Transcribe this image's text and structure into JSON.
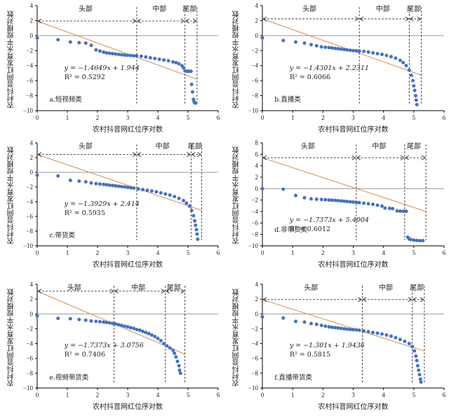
{
  "chart_data": [
    {
      "type": "scatter",
      "sublabel": "a.短视频类",
      "xlabel": "农村抖音网红位序对数",
      "ylabel": "农村抖音网红发育水平规模对数",
      "xlim": [
        0,
        6
      ],
      "ylim": [
        -10,
        4
      ],
      "xticks": [
        "0",
        "1",
        "2",
        "3",
        "4",
        "5",
        "6"
      ],
      "yticks": [
        "4",
        "2",
        "0",
        "−2",
        "−4",
        "−6",
        "−8",
        "−10"
      ],
      "segments": [
        "头部",
        "中部",
        "尾部"
      ],
      "segment_bounds": [
        3.3,
        4.9,
        5.3
      ],
      "equation": "y = −1.4649x + 1.944",
      "r2_label": "R² = 0.5292",
      "fit": {
        "slope": -1.4649,
        "intercept": 1.944
      },
      "points": [
        [
          0,
          -0.3
        ],
        [
          0.69,
          -0.55
        ],
        [
          1.1,
          -0.85
        ],
        [
          1.39,
          -0.95
        ],
        [
          1.61,
          -1.0
        ],
        [
          1.79,
          -1.3
        ],
        [
          1.95,
          -1.9
        ],
        [
          2.08,
          -2.05
        ],
        [
          2.2,
          -2.2
        ],
        [
          2.3,
          -2.3
        ],
        [
          2.4,
          -2.35
        ],
        [
          2.5,
          -2.4
        ],
        [
          2.6,
          -2.45
        ],
        [
          2.7,
          -2.5
        ],
        [
          2.8,
          -2.55
        ],
        [
          2.9,
          -2.6
        ],
        [
          3.0,
          -2.62
        ],
        [
          3.1,
          -2.65
        ],
        [
          3.2,
          -2.68
        ],
        [
          3.3,
          -2.7
        ],
        [
          3.45,
          -2.75
        ],
        [
          3.6,
          -2.85
        ],
        [
          3.75,
          -2.95
        ],
        [
          3.9,
          -3.05
        ],
        [
          4.05,
          -3.15
        ],
        [
          4.2,
          -3.25
        ],
        [
          4.35,
          -3.35
        ],
        [
          4.5,
          -3.5
        ],
        [
          4.6,
          -3.6
        ],
        [
          4.7,
          -3.75
        ],
        [
          4.8,
          -4.0
        ],
        [
          4.85,
          -4.3
        ],
        [
          4.9,
          -4.7
        ],
        [
          4.95,
          -4.75
        ],
        [
          5.0,
          -4.75
        ],
        [
          5.05,
          -4.75
        ],
        [
          5.1,
          -4.75
        ],
        [
          5.12,
          -6.5
        ],
        [
          5.15,
          -7.5
        ],
        [
          5.18,
          -8.5
        ],
        [
          5.2,
          -8.8
        ],
        [
          5.22,
          -8.95
        ],
        [
          5.25,
          -9.0
        ]
      ]
    },
    {
      "type": "scatter",
      "sublabel": "b.直播类",
      "xlabel": "农村抖音网红位序对数",
      "ylabel": "农村抖音网红发育水平规模对数",
      "xlim": [
        0,
        6
      ],
      "ylim": [
        -10,
        4
      ],
      "xticks": [
        "0",
        "1",
        "2",
        "3",
        "4",
        "5",
        "6"
      ],
      "yticks": [
        "4",
        "2",
        "0",
        "−2",
        "−4",
        "−6",
        "−8",
        "−10"
      ],
      "segments": [
        "头部",
        "中部",
        "尾部"
      ],
      "segment_bounds": [
        3.2,
        4.85,
        5.25
      ],
      "equation": "y = −1.4301x + 2.2311",
      "r2_label": "R² = 0.6066",
      "fit": {
        "slope": -1.4301,
        "intercept": 2.2311
      },
      "points": [
        [
          0,
          -0.3
        ],
        [
          0.69,
          -0.65
        ],
        [
          1.1,
          -0.85
        ],
        [
          1.39,
          -1.0
        ],
        [
          1.61,
          -1.2
        ],
        [
          1.79,
          -1.35
        ],
        [
          1.95,
          -1.5
        ],
        [
          2.08,
          -1.55
        ],
        [
          2.2,
          -1.6
        ],
        [
          2.3,
          -1.65
        ],
        [
          2.4,
          -1.7
        ],
        [
          2.5,
          -1.75
        ],
        [
          2.6,
          -1.8
        ],
        [
          2.7,
          -1.85
        ],
        [
          2.8,
          -1.9
        ],
        [
          2.9,
          -1.95
        ],
        [
          3.0,
          -2.0
        ],
        [
          3.1,
          -2.02
        ],
        [
          3.2,
          -2.05
        ],
        [
          3.35,
          -2.1
        ],
        [
          3.5,
          -2.2
        ],
        [
          3.65,
          -2.3
        ],
        [
          3.8,
          -2.4
        ],
        [
          3.95,
          -2.5
        ],
        [
          4.1,
          -2.65
        ],
        [
          4.25,
          -2.8
        ],
        [
          4.4,
          -3.0
        ],
        [
          4.55,
          -3.3
        ],
        [
          4.65,
          -3.6
        ],
        [
          4.75,
          -4.0
        ],
        [
          4.85,
          -4.6
        ],
        [
          4.92,
          -5.3
        ],
        [
          4.97,
          -6.0
        ],
        [
          5.0,
          -6.7
        ],
        [
          5.03,
          -7.3
        ],
        [
          5.06,
          -8.0
        ],
        [
          5.08,
          -8.6
        ],
        [
          5.1,
          -9.2
        ]
      ]
    },
    {
      "type": "scatter",
      "sublabel": "c.带货类",
      "xlabel": "农村抖音网红位序对数",
      "ylabel": "农村抖音网红发育水平规模对数",
      "xlim": [
        0,
        6
      ],
      "ylim": [
        -10,
        4
      ],
      "xticks": [
        "0",
        "1",
        "2",
        "3",
        "4",
        "5",
        "6"
      ],
      "yticks": [
        "4",
        "2",
        "0",
        "−2",
        "−4",
        "−6",
        "−8",
        "−10"
      ],
      "segments": [
        "头部",
        "中部",
        "尾部"
      ],
      "segment_bounds": [
        3.3,
        5.1,
        5.45
      ],
      "equation": "y = −1.3929x + 2.414",
      "r2_label": "R² = 0.5935",
      "fit": {
        "slope": -1.3929,
        "intercept": 2.414
      },
      "points": [
        [
          0,
          -0.4
        ],
        [
          0.69,
          -0.5
        ],
        [
          1.1,
          -1.1
        ],
        [
          1.39,
          -1.2
        ],
        [
          1.61,
          -1.3
        ],
        [
          1.79,
          -1.45
        ],
        [
          1.95,
          -1.55
        ],
        [
          2.08,
          -1.6
        ],
        [
          2.2,
          -1.65
        ],
        [
          2.3,
          -1.7
        ],
        [
          2.4,
          -1.75
        ],
        [
          2.5,
          -1.8
        ],
        [
          2.6,
          -1.85
        ],
        [
          2.7,
          -1.9
        ],
        [
          2.8,
          -1.95
        ],
        [
          2.9,
          -2.0
        ],
        [
          3.0,
          -2.05
        ],
        [
          3.1,
          -2.1
        ],
        [
          3.2,
          -2.15
        ],
        [
          3.35,
          -2.25
        ],
        [
          3.5,
          -2.35
        ],
        [
          3.65,
          -2.45
        ],
        [
          3.8,
          -2.55
        ],
        [
          3.95,
          -2.65
        ],
        [
          4.1,
          -2.8
        ],
        [
          4.25,
          -2.95
        ],
        [
          4.4,
          -3.1
        ],
        [
          4.55,
          -3.3
        ],
        [
          4.7,
          -3.55
        ],
        [
          4.85,
          -3.85
        ],
        [
          4.95,
          -4.2
        ],
        [
          5.05,
          -4.6
        ],
        [
          5.12,
          -5.2
        ],
        [
          5.18,
          -5.9
        ],
        [
          5.22,
          -6.6
        ],
        [
          5.25,
          -7.2
        ],
        [
          5.28,
          -7.8
        ],
        [
          5.3,
          -8.4
        ],
        [
          5.32,
          -9.1
        ]
      ]
    },
    {
      "type": "scatter",
      "sublabel": "d.非带货类",
      "xlabel": "农村抖音网红位序对数",
      "ylabel": "农村抖音网红发育水平规模对数",
      "xlim": [
        0,
        6
      ],
      "ylim": [
        -10,
        8
      ],
      "xticks": [
        "0",
        "1",
        "2",
        "3",
        "4",
        "5",
        "6"
      ],
      "yticks": [
        "8",
        "6",
        "4",
        "2",
        "0",
        "−2",
        "−4",
        "−6",
        "−8",
        "−10"
      ],
      "segments": [
        "头部",
        "中部",
        "尾部"
      ],
      "segment_bounds": [
        3.1,
        4.7,
        5.4
      ],
      "equation": "y = −1.7373x + 5.4004",
      "r2_label": "R² = 0.6012",
      "fit": {
        "slope": -1.7373,
        "intercept": 5.4004
      },
      "points": [
        [
          0,
          0
        ],
        [
          0.69,
          -0.1
        ],
        [
          1.1,
          -1.2
        ],
        [
          1.39,
          -1.6
        ],
        [
          1.61,
          -1.8
        ],
        [
          1.79,
          -1.85
        ],
        [
          1.95,
          -1.9
        ],
        [
          2.08,
          -1.95
        ],
        [
          2.2,
          -2.0
        ],
        [
          2.3,
          -2.02
        ],
        [
          2.4,
          -2.05
        ],
        [
          2.5,
          -2.1
        ],
        [
          2.6,
          -2.15
        ],
        [
          2.7,
          -2.2
        ],
        [
          2.8,
          -2.25
        ],
        [
          2.9,
          -2.3
        ],
        [
          3.0,
          -2.35
        ],
        [
          3.1,
          -2.4
        ],
        [
          3.2,
          -2.45
        ],
        [
          3.35,
          -2.55
        ],
        [
          3.5,
          -2.65
        ],
        [
          3.65,
          -2.75
        ],
        [
          3.8,
          -2.9
        ],
        [
          3.95,
          -3.05
        ],
        [
          4.05,
          -3.4
        ],
        [
          4.2,
          -3.45
        ],
        [
          4.3,
          -3.5
        ],
        [
          4.45,
          -3.9
        ],
        [
          4.55,
          -3.95
        ],
        [
          4.65,
          -3.95
        ],
        [
          4.75,
          -3.95
        ],
        [
          4.8,
          -8.5
        ],
        [
          4.85,
          -8.8
        ],
        [
          4.9,
          -8.9
        ],
        [
          5.0,
          -9.0
        ],
        [
          5.1,
          -9.05
        ],
        [
          5.2,
          -9.1
        ],
        [
          5.3,
          -9.1
        ]
      ]
    },
    {
      "type": "scatter",
      "sublabel": "e.视频带货类",
      "xlabel": "农村抖音网红位序对数",
      "ylabel": "农村抖音网红发育水平规模对数",
      "xlim": [
        0,
        6
      ],
      "ylim": [
        -10,
        4
      ],
      "xticks": [
        "0",
        "1",
        "2",
        "3",
        "4",
        "5",
        "6"
      ],
      "yticks": [
        "4",
        "2",
        "0",
        "−2",
        "−4",
        "−6",
        "−8",
        "−10"
      ],
      "segments": [
        "头部",
        "中部",
        "尾部"
      ],
      "segment_bounds": [
        2.55,
        4.25,
        4.9
      ],
      "equation": "y = −1.7373x + 3.0756",
      "r2_label": "R² = 0.7406",
      "fit": {
        "slope": -1.7373,
        "intercept": 3.0756
      },
      "points": [
        [
          0,
          -0.25
        ],
        [
          0.69,
          -0.6
        ],
        [
          1.1,
          -0.65
        ],
        [
          1.39,
          -0.75
        ],
        [
          1.61,
          -0.85
        ],
        [
          1.79,
          -0.95
        ],
        [
          1.95,
          -1.0
        ],
        [
          2.08,
          -1.05
        ],
        [
          2.2,
          -1.1
        ],
        [
          2.3,
          -1.15
        ],
        [
          2.4,
          -1.2
        ],
        [
          2.5,
          -1.3
        ],
        [
          2.6,
          -1.35
        ],
        [
          2.7,
          -1.45
        ],
        [
          2.8,
          -1.55
        ],
        [
          2.9,
          -1.65
        ],
        [
          3.0,
          -1.75
        ],
        [
          3.1,
          -1.85
        ],
        [
          3.2,
          -1.95
        ],
        [
          3.3,
          -2.1
        ],
        [
          3.4,
          -2.2
        ],
        [
          3.5,
          -2.35
        ],
        [
          3.6,
          -2.5
        ],
        [
          3.7,
          -2.65
        ],
        [
          3.8,
          -2.85
        ],
        [
          3.9,
          -3.05
        ],
        [
          4.0,
          -3.3
        ],
        [
          4.1,
          -3.6
        ],
        [
          4.2,
          -4.0
        ],
        [
          4.3,
          -4.3
        ],
        [
          4.4,
          -4.6
        ],
        [
          4.5,
          -4.9
        ],
        [
          4.55,
          -5.3
        ],
        [
          4.6,
          -5.8
        ],
        [
          4.65,
          -6.4
        ],
        [
          4.7,
          -7.0
        ],
        [
          4.72,
          -7.6
        ],
        [
          4.75,
          -8.0
        ]
      ]
    },
    {
      "type": "scatter",
      "sublabel": "f.直播带货类",
      "xlabel": "农村抖音网红位序对数",
      "ylabel": "农村抖音网红发育水平规模对数",
      "xlim": [
        0,
        6
      ],
      "ylim": [
        -10,
        4
      ],
      "xticks": [
        "0",
        "1",
        "2",
        "3",
        "4",
        "5",
        "6"
      ],
      "yticks": [
        "4",
        "2",
        "0",
        "−2",
        "−4",
        "−6",
        "−8",
        "−10"
      ],
      "segments": [
        "头部",
        "中部",
        "尾部"
      ],
      "segment_bounds": [
        3.3,
        4.95,
        5.35
      ],
      "equation": "y = −1.301x + 1.9436",
      "r2_label": "R² = 0.5815",
      "fit": {
        "slope": -1.301,
        "intercept": 1.9436
      },
      "points": [
        [
          0,
          -0.4
        ],
        [
          0.69,
          -0.55
        ],
        [
          1.1,
          -1.0
        ],
        [
          1.39,
          -1.1
        ],
        [
          1.61,
          -1.3
        ],
        [
          1.79,
          -1.4
        ],
        [
          1.95,
          -1.55
        ],
        [
          2.08,
          -1.65
        ],
        [
          2.2,
          -1.75
        ],
        [
          2.3,
          -1.8
        ],
        [
          2.4,
          -1.85
        ],
        [
          2.5,
          -1.9
        ],
        [
          2.6,
          -1.95
        ],
        [
          2.7,
          -2.0
        ],
        [
          2.8,
          -2.05
        ],
        [
          2.9,
          -2.1
        ],
        [
          3.0,
          -2.12
        ],
        [
          3.1,
          -2.15
        ],
        [
          3.2,
          -2.2
        ],
        [
          3.35,
          -2.3
        ],
        [
          3.5,
          -2.4
        ],
        [
          3.65,
          -2.5
        ],
        [
          3.8,
          -2.6
        ],
        [
          3.95,
          -2.7
        ],
        [
          4.1,
          -2.85
        ],
        [
          4.25,
          -3.0
        ],
        [
          4.4,
          -3.2
        ],
        [
          4.55,
          -3.45
        ],
        [
          4.7,
          -3.7
        ],
        [
          4.85,
          -4.0
        ],
        [
          4.95,
          -4.4
        ],
        [
          5.02,
          -5.0
        ],
        [
          5.07,
          -5.7
        ],
        [
          5.1,
          -6.3
        ],
        [
          5.13,
          -7.0
        ],
        [
          5.16,
          -7.6
        ],
        [
          5.19,
          -8.2
        ],
        [
          5.22,
          -8.8
        ],
        [
          5.24,
          -9.2
        ]
      ]
    }
  ]
}
